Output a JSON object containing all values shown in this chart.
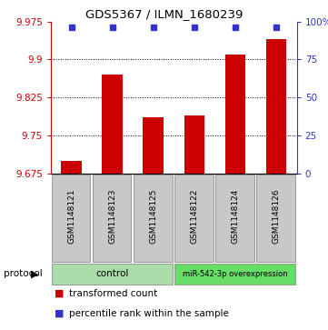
{
  "title": "GDS5367 / ILMN_1680239",
  "samples": [
    "GSM1148121",
    "GSM1148123",
    "GSM1148125",
    "GSM1148122",
    "GSM1148124",
    "GSM1148126"
  ],
  "red_values": [
    9.7,
    9.87,
    9.785,
    9.79,
    9.91,
    9.94
  ],
  "blue_values": [
    96,
    96,
    96,
    96,
    96,
    96
  ],
  "ylim_left": [
    9.675,
    9.975
  ],
  "ylim_right": [
    0,
    100
  ],
  "yticks_left": [
    9.675,
    9.75,
    9.825,
    9.9,
    9.975
  ],
  "yticks_right": [
    0,
    25,
    50,
    75,
    100
  ],
  "ytick_labels_right": [
    "0",
    "25",
    "50",
    "75",
    "100%"
  ],
  "bar_color": "#cc0000",
  "blue_color": "#3333cc",
  "bg_sample": "#c8c8c8",
  "bg_control": "#aaddaa",
  "bg_overexpr": "#66dd66",
  "legend_red": "transformed count",
  "legend_blue": "percentile rank within the sample",
  "protocol_label": "protocol"
}
